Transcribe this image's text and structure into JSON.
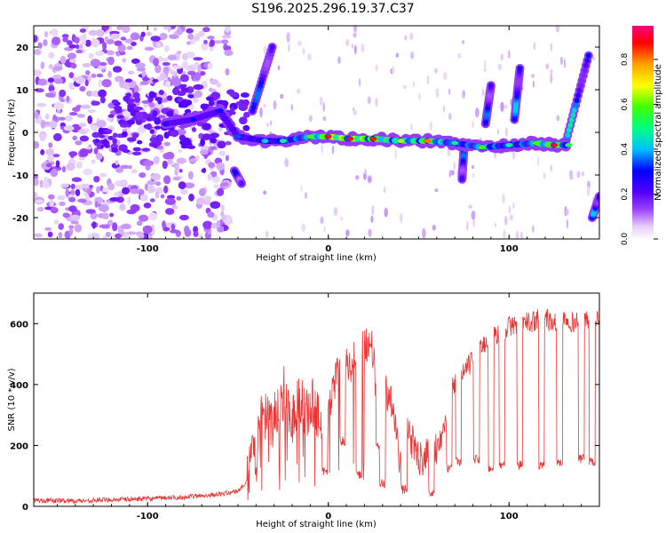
{
  "title": "S196.2025.296.19.37.C37",
  "chart_data": [
    {
      "type": "heatmap",
      "title": "S196.2025.296.19.37.C37",
      "xlabel": "Height of straight line (km)",
      "ylabel": "Frequency (Hz)",
      "xlim": [
        -163,
        150
      ],
      "ylim": [
        -25,
        25
      ],
      "xticks": [
        -100,
        0,
        100
      ],
      "yticks": [
        -20,
        -10,
        0,
        10,
        20
      ],
      "xtick_labels": [
        "-100",
        "0",
        "100"
      ],
      "ytick_labels": [
        "-20",
        "-10",
        "0",
        "10",
        "20"
      ],
      "colorbar": {
        "label": "Normalized spectral amplitude",
        "range": [
          0,
          0.95
        ],
        "ticks": [
          0.0,
          0.2,
          0.4,
          0.6,
          0.8
        ],
        "tick_labels": [
          "0.0",
          "0.2",
          "0.4",
          "0.6",
          "0.8"
        ],
        "colors": [
          "#ffffff",
          "#e4ccf8",
          "#9a40ff",
          "#5200ff",
          "#0000ff",
          "#00c0ff",
          "#00ff80",
          "#40ff00",
          "#ffff00",
          "#ffa000",
          "#ff0000",
          "#ff0080"
        ]
      },
      "noise_region_x": [
        -163,
        -55
      ],
      "ridge": [
        {
          "x": -90,
          "f": 2,
          "a": 0.3
        },
        {
          "x": -75,
          "f": 3,
          "a": 0.32
        },
        {
          "x": -60,
          "f": 5,
          "a": 0.35
        },
        {
          "x": -50,
          "f": -1,
          "a": 0.38
        },
        {
          "x": -35,
          "f": -2,
          "a": 0.45
        },
        {
          "x": -25,
          "f": -2,
          "a": 0.5
        },
        {
          "x": -10,
          "f": -1,
          "a": 0.6
        },
        {
          "x": 0,
          "f": -1,
          "a": 0.92
        },
        {
          "x": 12,
          "f": -1.5,
          "a": 0.9
        },
        {
          "x": 25,
          "f": -1.5,
          "a": 0.85
        },
        {
          "x": 40,
          "f": -2,
          "a": 0.65
        },
        {
          "x": 55,
          "f": -2,
          "a": 0.8
        },
        {
          "x": 70,
          "f": -2.5,
          "a": 0.5
        },
        {
          "x": 85,
          "f": -3.5,
          "a": 0.6
        },
        {
          "x": 100,
          "f": -3,
          "a": 0.5
        },
        {
          "x": 115,
          "f": -2.5,
          "a": 0.6
        },
        {
          "x": 125,
          "f": -3,
          "a": 0.9
        },
        {
          "x": 133,
          "f": -3,
          "a": 0.55
        }
      ],
      "streaks": [
        {
          "x1": -42,
          "f1": 5,
          "x2": -31,
          "f2": 20,
          "a": 0.4
        },
        {
          "x1": -52,
          "f1": -9,
          "x2": -48,
          "f2": -12,
          "a": 0.35
        },
        {
          "x1": 75,
          "f1": -4,
          "x2": 74,
          "f2": -11,
          "a": 0.4
        },
        {
          "x1": 87,
          "f1": 2,
          "x2": 90,
          "f2": 11,
          "a": 0.4
        },
        {
          "x1": 103,
          "f1": 3,
          "x2": 106,
          "f2": 15,
          "a": 0.45
        },
        {
          "x1": 131,
          "f1": -3,
          "x2": 144,
          "f2": 18,
          "a": 0.5
        },
        {
          "x1": 146,
          "f1": -20,
          "x2": 150,
          "f2": -15,
          "a": 0.45
        }
      ]
    },
    {
      "type": "line",
      "xlabel": "Height of straight line (km)",
      "ylabel": "SNR (10 * v/v)",
      "xlim": [
        -163,
        150
      ],
      "ylim": [
        0,
        700
      ],
      "xticks": [
        -100,
        0,
        100
      ],
      "yticks": [
        0,
        200,
        400,
        600
      ],
      "xtick_labels": [
        "-100",
        "0",
        "100"
      ],
      "ytick_labels": [
        "0",
        "200",
        "400",
        "600"
      ],
      "series": [
        {
          "name": "SNR",
          "color": "#ee3333",
          "x": [
            -163,
            -140,
            -120,
            -100,
            -80,
            -70,
            -60,
            -50,
            -45,
            -40,
            -36,
            -32,
            -28,
            -24,
            -20,
            -16,
            -12,
            -8,
            -4,
            0,
            4,
            8,
            12,
            16,
            20,
            24,
            28,
            32,
            36,
            40,
            44,
            48,
            52,
            56,
            60,
            64,
            68,
            72,
            76,
            80,
            84,
            88,
            92,
            96,
            100,
            104,
            108,
            112,
            116,
            120,
            124,
            128,
            132,
            136,
            140,
            144,
            150
          ],
          "values": [
            20,
            18,
            22,
            25,
            30,
            35,
            40,
            50,
            80,
            200,
            300,
            260,
            320,
            380,
            280,
            360,
            300,
            340,
            280,
            300,
            420,
            480,
            460,
            510,
            530,
            540,
            300,
            380,
            340,
            120,
            260,
            180,
            150,
            220,
            190,
            250,
            380,
            420,
            450,
            480,
            520,
            540,
            560,
            570,
            590,
            600,
            610,
            600,
            620,
            620,
            600,
            610,
            620,
            600,
            630,
            610,
            620
          ]
        }
      ],
      "dips": [
        {
          "x": -2,
          "v": 100
        },
        {
          "x": 8,
          "v": 200
        },
        {
          "x": 17,
          "v": 90
        },
        {
          "x": 28,
          "v": 180
        },
        {
          "x": 30,
          "v": 60
        },
        {
          "x": 42,
          "v": 40
        },
        {
          "x": 57,
          "v": 30
        },
        {
          "x": 67,
          "v": 110
        },
        {
          "x": 72,
          "v": 130
        },
        {
          "x": 82,
          "v": 140
        },
        {
          "x": 90,
          "v": 110
        },
        {
          "x": 96,
          "v": 120
        },
        {
          "x": 106,
          "v": 120
        },
        {
          "x": 118,
          "v": 120
        },
        {
          "x": 128,
          "v": 130
        },
        {
          "x": 140,
          "v": 140
        },
        {
          "x": 146,
          "v": 130
        }
      ]
    }
  ]
}
